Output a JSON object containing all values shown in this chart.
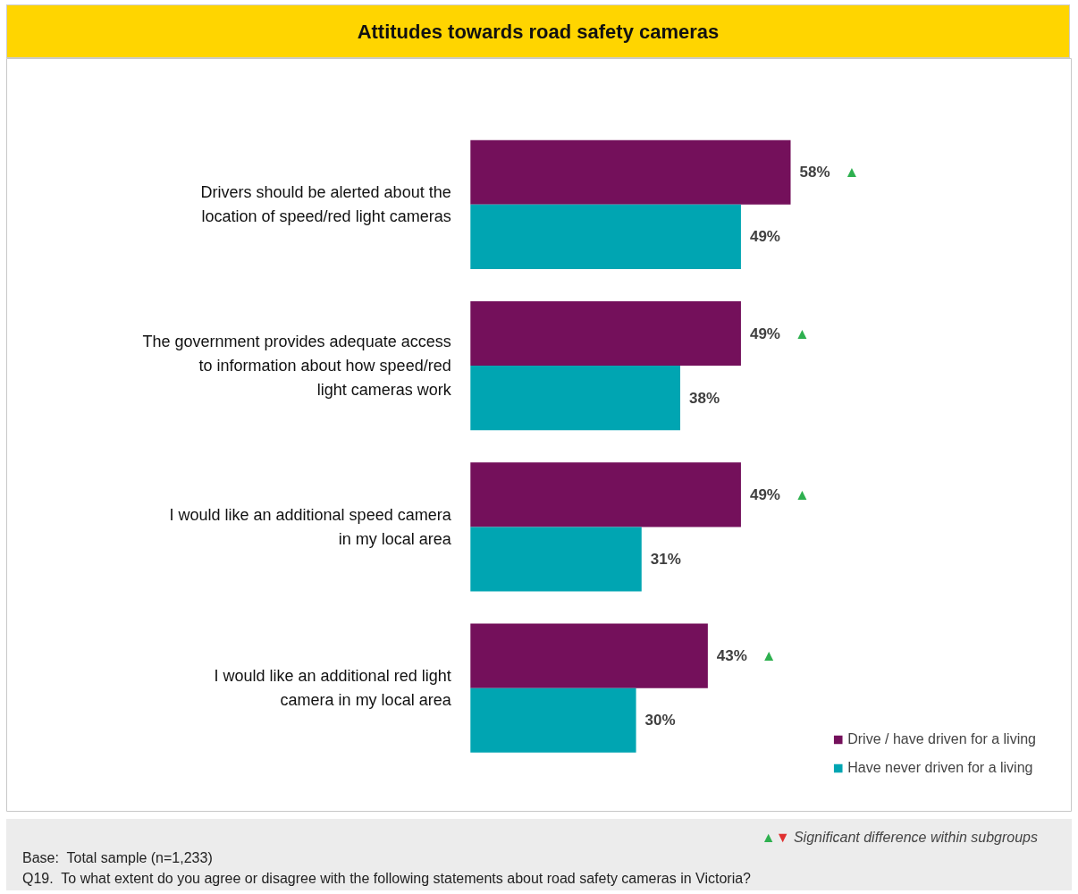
{
  "chart_data": {
    "type": "bar",
    "orientation": "horizontal",
    "title": "Attitudes towards road safety cameras",
    "categories": [
      "Drivers should be alerted about the location of speed/red light cameras",
      "The government provides adequate access to information about how speed/red light cameras work",
      "I would like an additional speed camera in my local area",
      "I would like an additional red light camera in my local area"
    ],
    "series": [
      {
        "name": "Drive / have driven for a living",
        "color": "#74105b",
        "values": [
          58,
          49,
          49,
          43
        ],
        "value_labels": [
          "58% ▲",
          "49% ▲",
          "49% ▲",
          "43% ▲"
        ]
      },
      {
        "name": "Have never driven for a living",
        "color": "#00a5b2",
        "values": [
          49,
          38,
          31,
          30
        ],
        "value_labels": [
          "49%",
          "38%",
          "31%",
          "30%"
        ]
      }
    ],
    "legend": "bottom right",
    "grid": false,
    "annotations": [
      "▲▼ Significant difference within subgroups",
      "Base:  Total sample (n=1,233)",
      "Q19.  To what extent do you agree or disagree with the following statements about road safety cameras in Victoria?"
    ]
  }
}
